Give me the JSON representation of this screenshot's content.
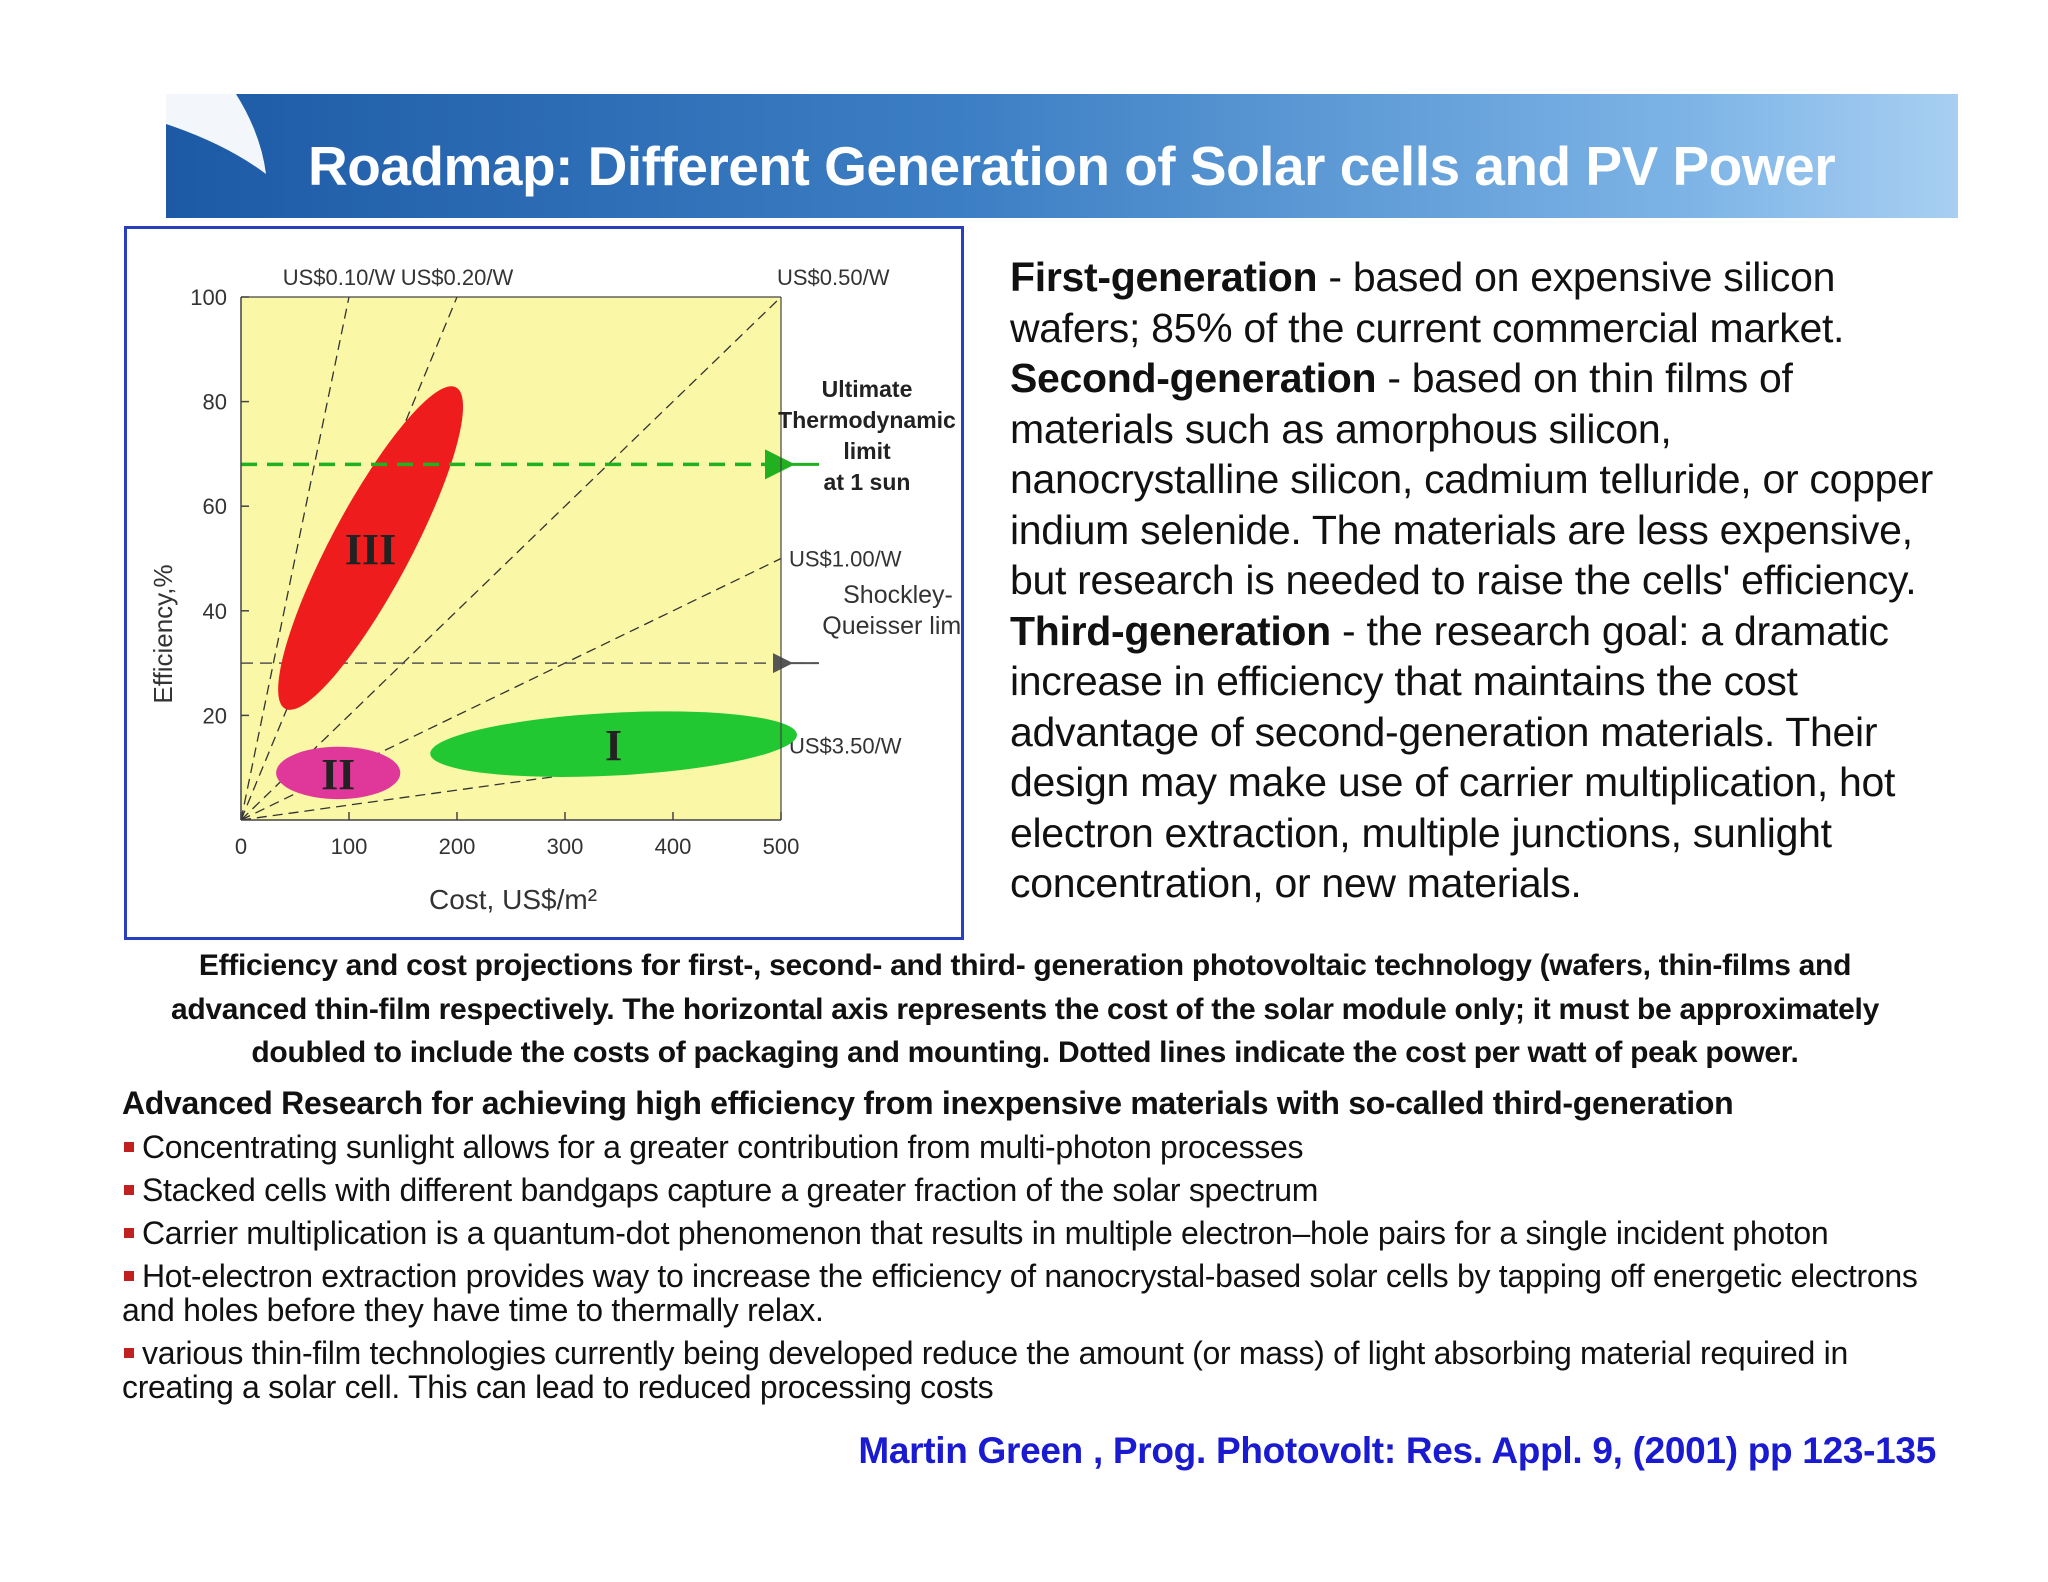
{
  "slide": {
    "title": "Roadmap:  Different Generation of Solar cells and PV Power",
    "colors": {
      "header_dark": "#1d5aa6",
      "header_light": "#a8cff2",
      "reference": "#1a1ad0",
      "bullet": "#c02020"
    }
  },
  "chart_data": {
    "type": "scatter",
    "xlabel": "Cost, US$/m²",
    "ylabel": "Efficiency,%",
    "xlim": [
      0,
      500
    ],
    "ylim": [
      0,
      100
    ],
    "x_ticks": [
      "0",
      "100",
      "200",
      "300",
      "400",
      "500"
    ],
    "y_ticks": [
      "20",
      "40",
      "60",
      "80",
      "100"
    ],
    "cost_per_watt_lines": [
      {
        "label": "US$0.10/W",
        "usd_per_w": 0.1
      },
      {
        "label": "US$0.20/W",
        "usd_per_w": 0.2
      },
      {
        "label": "US$0.50/W",
        "usd_per_w": 0.5
      },
      {
        "label": "US$1.00/W",
        "usd_per_w": 1.0
      },
      {
        "label": "US$3.50/W",
        "usd_per_w": 3.5
      }
    ],
    "regions": [
      {
        "label": "III",
        "color": "#ee1c1c",
        "cost_center": 120,
        "eff_center": 52,
        "cost_range": [
          50,
          190
        ],
        "eff_range": [
          22,
          84
        ]
      },
      {
        "label": "II",
        "color": "#e0389a",
        "cost_center": 90,
        "eff_center": 9,
        "cost_range": [
          30,
          145
        ],
        "eff_range": [
          4,
          14
        ]
      },
      {
        "label": "I",
        "color": "#22c832",
        "cost_center": 345,
        "eff_center": 14.5,
        "cost_range": [
          160,
          500
        ],
        "eff_range": [
          8,
          20
        ]
      }
    ],
    "limits": [
      {
        "name": "ultimate",
        "efficiency": 68,
        "color": "#20b020",
        "label_lines": [
          "Ultimate",
          "Thermodynamic",
          "limit",
          "at 1 sun"
        ]
      },
      {
        "name": "shockley_queisser",
        "efficiency": 30,
        "color": "#555555",
        "label_lines": [
          "Shockley-",
          "Queisser limit"
        ]
      }
    ],
    "background": "#faf7a6",
    "grid": false
  },
  "generations": {
    "first_title": "First-generation",
    "first_text": " - based on expensive silicon wafers; 85% of the current commercial market.",
    "second_title": "Second-generation",
    "second_text": " - based on thin films of materials such as amorphous silicon, nanocrystalline silicon, cadmium telluride, or copper indium selenide. The materials are less expensive, but research is needed to raise the cells' efficiency.",
    "third_title": "Third-generation",
    "third_text": " - the research goal: a dramatic increase in efficiency that maintains the cost advantage of second-generation materials. Their design may make use of carrier multiplication, hot electron extraction, multiple junctions, sunlight concentration, or new materials."
  },
  "caption": "Efficiency and cost projections for first-, second- and third- generation photovoltaic technology (wafers, thin-films and advanced thin-film respectively. The horizontal axis represents the cost of the solar module only; it must be approximately doubled to include the costs of packaging and mounting. Dotted lines indicate the cost per watt of peak power.",
  "research": {
    "heading": "Advanced Research for achieving high efficiency from inexpensive materials with so-called third-generation",
    "bullets": [
      "Concentrating sunlight allows for a greater contribution from multi-photon processes",
      "Stacked cells with different bandgaps capture a greater fraction of the solar spectrum",
      "Carrier multiplication is a quantum-dot phenomenon that results in multiple electron–hole pairs for a single incident photon",
      "Hot-electron extraction provides way to increase the efficiency of nanocrystal-based solar cells by tapping off energetic electrons and holes before they have time to thermally relax.",
      "various thin-film technologies currently being developed reduce the amount (or mass) of light absorbing material required in creating a solar cell. This can lead to reduced processing costs"
    ]
  },
  "reference": "Martin Green , Prog. Photovolt: Res. Appl. 9, (2001)  pp 123-135"
}
